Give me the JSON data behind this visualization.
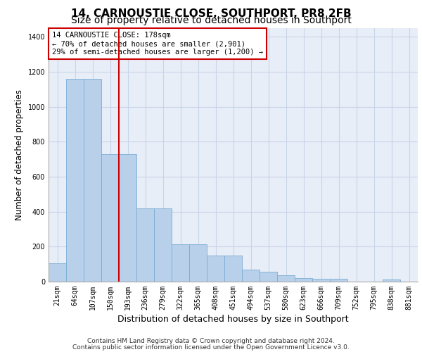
{
  "title": "14, CARNOUSTIE CLOSE, SOUTHPORT, PR8 2FB",
  "subtitle": "Size of property relative to detached houses in Southport",
  "xlabel": "Distribution of detached houses by size in Southport",
  "ylabel": "Number of detached properties",
  "categories": [
    "21sqm",
    "64sqm",
    "107sqm",
    "150sqm",
    "193sqm",
    "236sqm",
    "279sqm",
    "322sqm",
    "365sqm",
    "408sqm",
    "451sqm",
    "494sqm",
    "537sqm",
    "580sqm",
    "623sqm",
    "666sqm",
    "709sqm",
    "752sqm",
    "795sqm",
    "838sqm",
    "881sqm"
  ],
  "bar_values": [
    105,
    1160,
    1160,
    730,
    730,
    420,
    420,
    215,
    215,
    150,
    150,
    70,
    55,
    35,
    20,
    15,
    15,
    0,
    0,
    12,
    0
  ],
  "bar_color": "#b8d0ea",
  "bar_edge_color": "#7aadd4",
  "grid_color": "#c8d4e8",
  "background_color": "#e8eef8",
  "red_line_index": 4,
  "annotation_text": "14 CARNOUSTIE CLOSE: 178sqm\n← 70% of detached houses are smaller (2,901)\n29% of semi-detached houses are larger (1,200) →",
  "annotation_box_color": "#ffffff",
  "annotation_box_edge_color": "#cc0000",
  "ylim": [
    0,
    1450
  ],
  "yticks": [
    0,
    200,
    400,
    600,
    800,
    1000,
    1200,
    1400
  ],
  "footer_line1": "Contains HM Land Registry data © Crown copyright and database right 2024.",
  "footer_line2": "Contains public sector information licensed under the Open Government Licence v3.0.",
  "title_fontsize": 11,
  "subtitle_fontsize": 10,
  "ylabel_fontsize": 8.5,
  "xlabel_fontsize": 9,
  "tick_fontsize": 7,
  "annotation_fontsize": 7.5,
  "footer_fontsize": 6.5
}
